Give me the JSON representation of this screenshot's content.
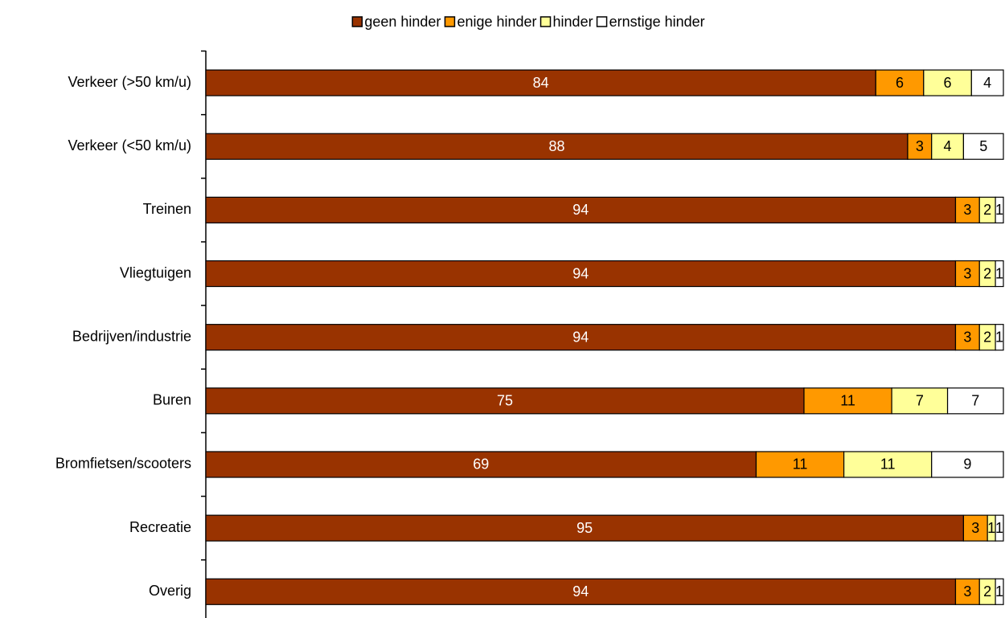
{
  "chart_data": {
    "type": "stacked_bar_horizontal",
    "categories": [
      "Verkeer (>50 km/u)",
      "Verkeer (<50 km/u)",
      "Treinen",
      "Vliegtuigen",
      "Bedrijven/industrie",
      "Buren",
      "Bromfietsen/scooters",
      "Recreatie",
      "Overig"
    ],
    "series": [
      {
        "name": "geen hinder",
        "color": "#993300",
        "values": [
          84,
          88,
          94,
          94,
          94,
          75,
          69,
          95,
          94
        ]
      },
      {
        "name": "enige hinder",
        "color": "#ff9900",
        "values": [
          6,
          3,
          3,
          3,
          3,
          11,
          11,
          3,
          3
        ]
      },
      {
        "name": "hinder",
        "color": "#ffff99",
        "values": [
          6,
          4,
          2,
          2,
          2,
          7,
          11,
          1,
          2
        ]
      },
      {
        "name": "ernstige hinder",
        "color": "#ffffff",
        "values": [
          4,
          5,
          1,
          1,
          1,
          7,
          9,
          1,
          1
        ]
      }
    ],
    "xlim": [
      0,
      100
    ],
    "legend": "top"
  }
}
